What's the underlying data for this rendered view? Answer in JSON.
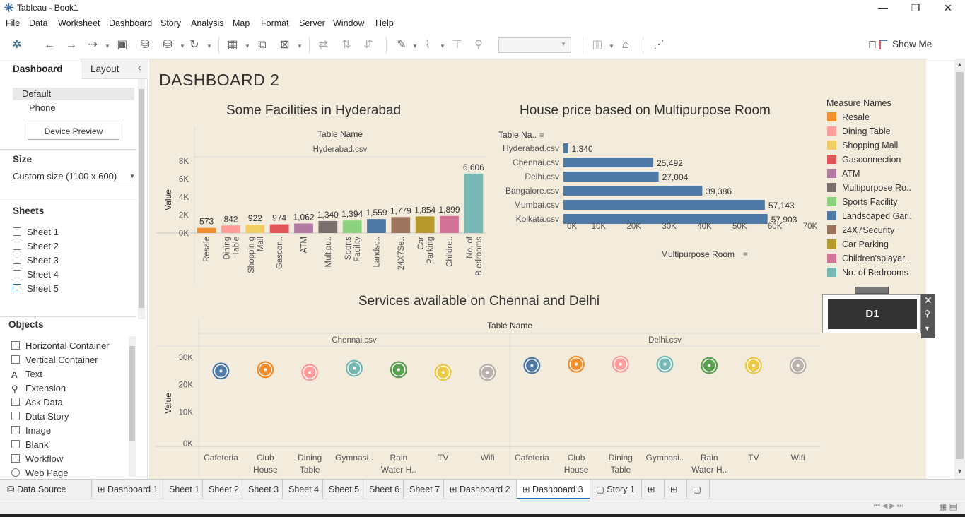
{
  "window": {
    "title": "Tableau - Book1",
    "minimize": "—",
    "restore": "❐",
    "close": "✕"
  },
  "menu": [
    "File",
    "Data",
    "Worksheet",
    "Dashboard",
    "Story",
    "Analysis",
    "Map",
    "Format",
    "Server",
    "Window",
    "Help"
  ],
  "toolbar": {
    "show_me_label": "Show Me"
  },
  "left_panel": {
    "tabs": {
      "dashboard": "Dashboard",
      "layout": "Layout"
    },
    "devices": [
      "Default",
      "Phone"
    ],
    "device_preview": "Device Preview",
    "size_header": "Size",
    "size_value": "Custom size (1100 x 600)",
    "sheets_header": "Sheets",
    "sheets": [
      "Sheet 1",
      "Sheet 2",
      "Sheet 3",
      "Sheet 4",
      "Sheet 5"
    ],
    "objects_header": "Objects",
    "objects": [
      "Horizontal Container",
      "Vertical Container",
      "Text",
      "Extension",
      "Ask Data",
      "Data Story",
      "Image",
      "Blank",
      "Workflow",
      "Web Page"
    ]
  },
  "dashboard": {
    "title": "DASHBOARD  2",
    "legend": {
      "title": "Measure Names",
      "items": [
        {
          "label": "Resale",
          "color": "#f28e2b"
        },
        {
          "label": "Dining Table",
          "color": "#ff9d9a"
        },
        {
          "label": "Shopping Mall",
          "color": "#f1ce63"
        },
        {
          "label": "Gasconnection",
          "color": "#e15759"
        },
        {
          "label": "ATM",
          "color": "#b07aa1"
        },
        {
          "label": "Multipurpose Ro..",
          "color": "#79706e"
        },
        {
          "label": "Sports Facility",
          "color": "#8cd17d"
        },
        {
          "label": "Landscaped Gar..",
          "color": "#4e79a7"
        },
        {
          "label": "24X7Security",
          "color": "#9c755f"
        },
        {
          "label": "Car Parking",
          "color": "#b6992d"
        },
        {
          "label": "Children'splayar..",
          "color": "#d37295"
        },
        {
          "label": "No. of Bedrooms",
          "color": "#76b7b2"
        }
      ]
    },
    "filter_card": {
      "label": "D1"
    }
  },
  "chart_data": [
    {
      "type": "bar",
      "title": "Some Facilities in Hyderabad",
      "header": "Table Name",
      "subheader": "Hyderabad.csv",
      "ylabel": "Value",
      "ylim": [
        0,
        8000
      ],
      "yticks": [
        "0K",
        "2K",
        "4K",
        "6K",
        "8K"
      ],
      "categories": [
        "Resale",
        "Dining Table",
        "Shoppin g Mall",
        "Gascon..",
        "ATM",
        "Multipu..",
        "Sports Facility",
        "Landsc..",
        "24X7Se..",
        "Car Parking",
        "Childre..",
        "No. of B edrooms"
      ],
      "values": [
        573,
        842,
        922,
        974,
        1062,
        1340,
        1394,
        1559,
        1779,
        1854,
        1899,
        6606
      ],
      "value_labels": [
        "573",
        "842",
        "922",
        "974",
        "1,062",
        "1,340",
        "1,394",
        "1,559",
        "1,779",
        "1,854",
        "1,899",
        "6,606"
      ],
      "colors": [
        "#f28e2b",
        "#ff9d9a",
        "#f1ce63",
        "#e15759",
        "#b07aa1",
        "#79706e",
        "#8cd17d",
        "#4e79a7",
        "#9c755f",
        "#b6992d",
        "#d37295",
        "#76b7b2"
      ]
    },
    {
      "type": "bar",
      "orientation": "horizontal",
      "title": "House price based on Multipurpose Room",
      "ylabel": "Table Na..",
      "xlabel": "Multipurpose Room",
      "xlim": [
        0,
        70000
      ],
      "xticks": [
        "0K",
        "10K",
        "20K",
        "30K",
        "40K",
        "50K",
        "60K",
        "70K"
      ],
      "categories": [
        "Hyderabad.csv",
        "Chennai.csv",
        "Delhi.csv",
        "Bangalore.csv",
        "Mumbai.csv",
        "Kolkata.csv"
      ],
      "values": [
        1340,
        25492,
        27004,
        39386,
        57143,
        57903
      ],
      "value_labels": [
        "1,340",
        "25,492",
        "27,004",
        "39,386",
        "57,143",
        "57,903"
      ],
      "color": "#4e79a7"
    },
    {
      "type": "scatter",
      "title": "Services available on Chennai and Delhi",
      "header": "Table Name",
      "panes": [
        "Chennai.csv",
        "Delhi.csv"
      ],
      "ylabel": "Value",
      "ylim": [
        0,
        30000
      ],
      "yticks": [
        "0K",
        "10K",
        "20K",
        "30K"
      ],
      "categories": [
        "Cafeteria",
        "Club House",
        "Dining Table",
        "Gymnasi..",
        "Rain Water H..",
        "TV",
        "Wifi"
      ],
      "colors": [
        "#4e79a7",
        "#f28e2b",
        "#ff9d9a",
        "#76b7b2",
        "#59a14f",
        "#edc948",
        "#bab0ac"
      ],
      "series": [
        {
          "name": "Chennai.csv",
          "values": [
            25000,
            25500,
            24500,
            26000,
            25500,
            24500,
            24500
          ]
        },
        {
          "name": "Delhi.csv",
          "values": [
            27000,
            27500,
            27500,
            27500,
            27000,
            27000,
            27000
          ]
        }
      ]
    }
  ],
  "bottom_tabs": [
    "Data Source",
    "Dashboard 1",
    "Sheet 1",
    "Sheet 2",
    "Sheet 3",
    "Sheet 4",
    "Sheet 5",
    "Sheet 6",
    "Sheet 7",
    "Dashboard 2",
    "Dashboard 3",
    "Story 1"
  ]
}
